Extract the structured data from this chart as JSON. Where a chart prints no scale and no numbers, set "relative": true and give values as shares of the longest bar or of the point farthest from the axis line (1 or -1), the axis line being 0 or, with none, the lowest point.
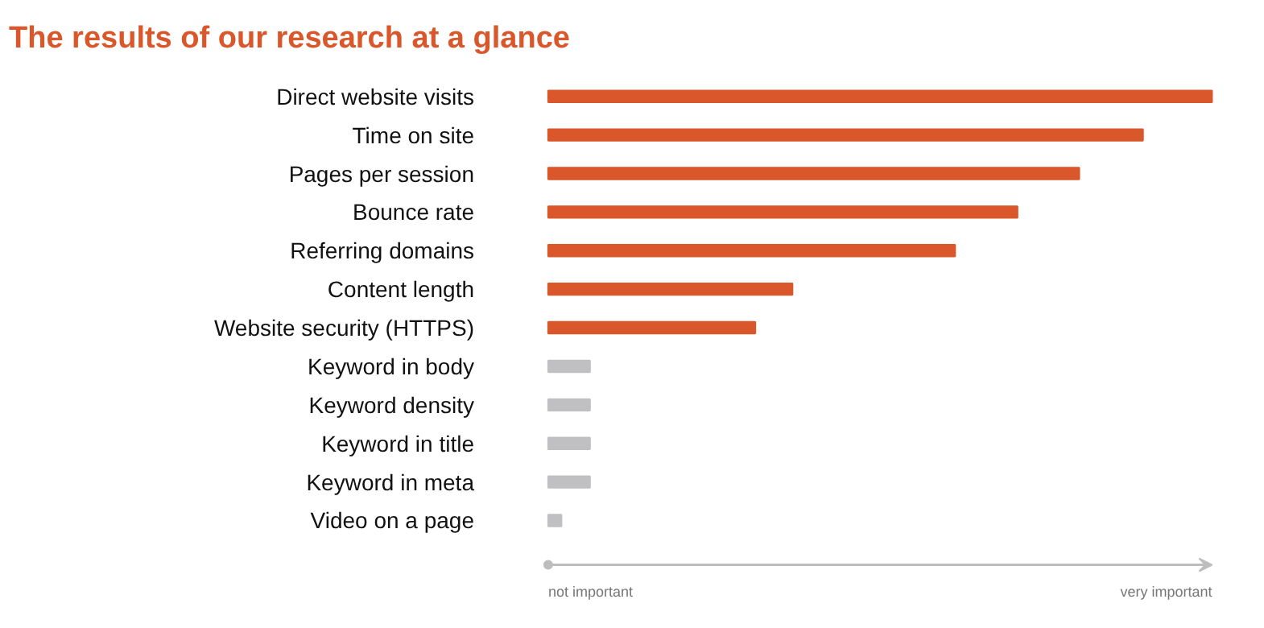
{
  "chart_data": {
    "type": "bar",
    "orientation": "horizontal",
    "relative": true,
    "title": "The results of our research at a glance",
    "categories": [
      "Direct website visits",
      "Time on site",
      "Pages per session",
      "Bounce rate",
      "Referring domains",
      "Content length",
      "Website security (HTTPS)",
      "Keyword in body",
      "Keyword density",
      "Keyword in title",
      "Keyword in meta",
      "Video on a page"
    ],
    "values": [
      1,
      0.896,
      0.8,
      0.707,
      0.613,
      0.368,
      0.312,
      0.063,
      0.063,
      0.063,
      0.063,
      0.02
    ],
    "colors": [
      "#d9572a",
      "#d9572a",
      "#d9572a",
      "#d9572a",
      "#d9572a",
      "#d9572a",
      "#d9572a",
      "#c0c0c2",
      "#c0c0c2",
      "#c0c0c2",
      "#c0c0c2",
      "#c0c0c2"
    ],
    "annotations": [
      "not important",
      "very important"
    ],
    "grid": false
  }
}
